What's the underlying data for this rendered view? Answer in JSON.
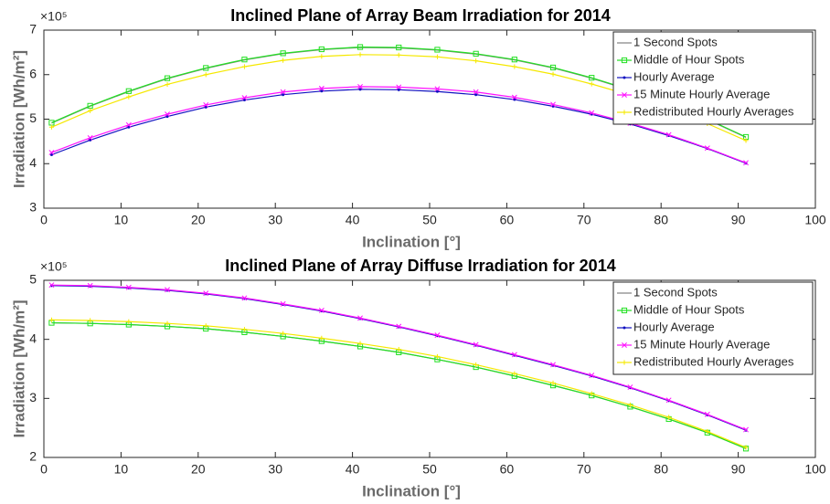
{
  "chart_data": [
    {
      "type": "line",
      "title": "Inclined Plane of Array Beam Irradiation for 2014",
      "xlabel": "Inclination [°]",
      "ylabel": "Irradiation [Wh/m²]",
      "y_multiplier": "×10⁵",
      "x": [
        1,
        6,
        11,
        16,
        21,
        26,
        31,
        36,
        41,
        46,
        51,
        56,
        61,
        66,
        71,
        76,
        81,
        86,
        91
      ],
      "xlim": [
        0,
        100
      ],
      "xticks": [
        0,
        10,
        20,
        30,
        40,
        50,
        60,
        70,
        80,
        90,
        100
      ],
      "ylim": [
        300000,
        700000
      ],
      "yticks": [
        {
          "value": 300000,
          "label": "3"
        },
        {
          "value": 400000,
          "label": "4"
        },
        {
          "value": 500000,
          "label": "5"
        },
        {
          "value": 600000,
          "label": "6"
        },
        {
          "value": 700000,
          "label": "7"
        }
      ],
      "legend": "upper right",
      "series": [
        {
          "name": "1 Second Spots",
          "color": "#808080",
          "marker": "none",
          "values": [
            491000,
            529000,
            562000,
            591000,
            614000,
            633000,
            647000,
            656000,
            661000,
            660000,
            655000,
            646000,
            633000,
            615000,
            592000,
            565000,
            534000,
            499000,
            459000
          ]
        },
        {
          "name": "Middle of Hour Spots",
          "color": "#22e022",
          "marker": "square",
          "values": [
            492000,
            530000,
            563000,
            592000,
            615000,
            634000,
            648000,
            657000,
            662000,
            661000,
            656000,
            647000,
            634000,
            616000,
            593000,
            566000,
            535000,
            500000,
            460000
          ]
        },
        {
          "name": "Hourly Average",
          "color": "#1010c0",
          "marker": "dot",
          "values": [
            420000,
            453000,
            482000,
            506000,
            527000,
            543000,
            555000,
            563000,
            567000,
            566000,
            562000,
            555000,
            544000,
            529000,
            511000,
            489000,
            463000,
            434000,
            401000
          ]
        },
        {
          "name": "15 Minute Hourly Average",
          "color": "#ff10ff",
          "marker": "x",
          "values": [
            425000,
            458000,
            487000,
            511000,
            532000,
            548000,
            561000,
            569000,
            573000,
            572000,
            568000,
            561000,
            549000,
            533000,
            514000,
            491000,
            465000,
            435000,
            402000
          ]
        },
        {
          "name": "Redistributed Hourly Averages",
          "color": "#f5e800",
          "marker": "plus",
          "values": [
            482000,
            519000,
            550000,
            578000,
            600000,
            618000,
            632000,
            641000,
            645000,
            644000,
            640000,
            631000,
            618000,
            601000,
            579000,
            554000,
            524000,
            490000,
            452000
          ]
        }
      ]
    },
    {
      "type": "line",
      "title": "Inclined Plane of Array Diffuse Irradiation for 2014",
      "xlabel": "Inclination [°]",
      "ylabel": "Irradiation [Wh/m²]",
      "y_multiplier": "×10⁵",
      "x": [
        1,
        6,
        11,
        16,
        21,
        26,
        31,
        36,
        41,
        46,
        51,
        56,
        61,
        66,
        71,
        76,
        81,
        86,
        91
      ],
      "xlim": [
        0,
        100
      ],
      "xticks": [
        0,
        10,
        20,
        30,
        40,
        50,
        60,
        70,
        80,
        90,
        100
      ],
      "ylim": [
        200000,
        500000
      ],
      "yticks": [
        {
          "value": 200000,
          "label": "2"
        },
        {
          "value": 300000,
          "label": "3"
        },
        {
          "value": 400000,
          "label": "4"
        },
        {
          "value": 500000,
          "label": "5"
        }
      ],
      "legend": "upper right",
      "series": [
        {
          "name": "1 Second Spots",
          "color": "#808080",
          "marker": "none",
          "values": [
            428000,
            427000,
            425000,
            422000,
            418000,
            412000,
            405000,
            397000,
            388000,
            378000,
            366000,
            353000,
            338000,
            322000,
            305000,
            286000,
            265000,
            242000,
            215000
          ]
        },
        {
          "name": "Middle of Hour Spots",
          "color": "#22e022",
          "marker": "square",
          "values": [
            428000,
            427000,
            425000,
            422000,
            418000,
            412000,
            405000,
            397000,
            388000,
            378000,
            366000,
            353000,
            338000,
            322000,
            305000,
            286000,
            265000,
            242000,
            215000
          ]
        },
        {
          "name": "Hourly Average",
          "color": "#1010c0",
          "marker": "dot",
          "values": [
            491000,
            490000,
            487000,
            483000,
            477000,
            469000,
            459000,
            448000,
            435000,
            421000,
            406000,
            390000,
            373000,
            356000,
            338000,
            318000,
            296000,
            272000,
            246000
          ]
        },
        {
          "name": "15 Minute Hourly Average",
          "color": "#ff10ff",
          "marker": "x",
          "values": [
            492000,
            491000,
            488000,
            484000,
            478000,
            470000,
            460000,
            449000,
            436000,
            422000,
            407000,
            391000,
            374000,
            357000,
            339000,
            319000,
            297000,
            273000,
            247000
          ]
        },
        {
          "name": "Redistributed Hourly Averages",
          "color": "#f5e800",
          "marker": "plus",
          "values": [
            433000,
            432000,
            430000,
            427000,
            423000,
            417000,
            410000,
            402000,
            393000,
            383000,
            371000,
            357000,
            342000,
            326000,
            308000,
            289000,
            268000,
            244000,
            217000
          ]
        }
      ]
    }
  ]
}
